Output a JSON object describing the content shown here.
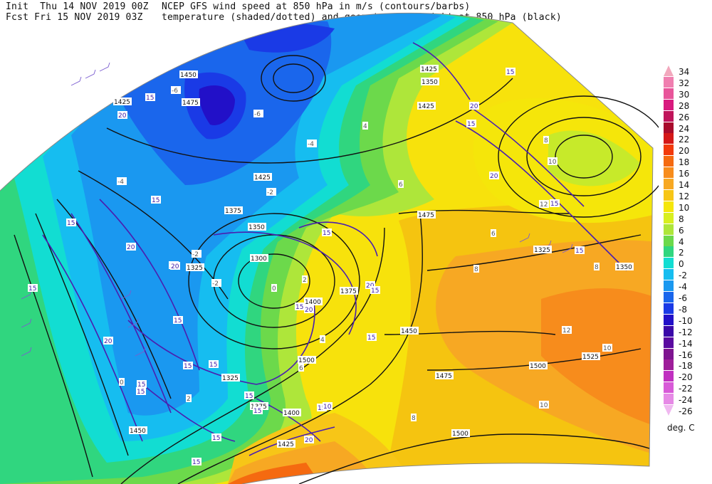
{
  "header": {
    "init_line": "Init  Thu 14 NOV 2019 00Z",
    "fcst_line": "Fcst Fri 15 NOV 2019 03Z",
    "title_line1": "NCEP GFS wind speed at 850 hPa in m/s (contours/barbs)",
    "title_line2": "temperature (shaded/dotted) and geopotential height at 850 hPa (black)"
  },
  "colorbar": {
    "units": "deg. C",
    "entries": [
      {
        "label": "34",
        "color": "#f2a8bd"
      },
      {
        "label": "32",
        "color": "#f07fb0"
      },
      {
        "label": "30",
        "color": "#e8559a"
      },
      {
        "label": "28",
        "color": "#d81b7f"
      },
      {
        "label": "26",
        "color": "#c0145a"
      },
      {
        "label": "24",
        "color": "#a80c2c"
      },
      {
        "label": "22",
        "color": "#d41818"
      },
      {
        "label": "20",
        "color": "#f23a0c"
      },
      {
        "label": "18",
        "color": "#f56a10"
      },
      {
        "label": "16",
        "color": "#f78c1c"
      },
      {
        "label": "14",
        "color": "#f7a823"
      },
      {
        "label": "12",
        "color": "#f7c617"
      },
      {
        "label": "10",
        "color": "#f5e60a"
      },
      {
        "label": "8",
        "color": "#d8ef1f"
      },
      {
        "label": "6",
        "color": "#aee63a"
      },
      {
        "label": "4",
        "color": "#6cd94b"
      },
      {
        "label": "2",
        "color": "#30d67f"
      },
      {
        "label": "0",
        "color": "#12ddd2"
      },
      {
        "label": "-2",
        "color": "#16bdf0"
      },
      {
        "label": "-4",
        "color": "#1a98f0"
      },
      {
        "label": "-6",
        "color": "#1a66ec"
      },
      {
        "label": "-8",
        "color": "#1a3ae6"
      },
      {
        "label": "-10",
        "color": "#2210c8"
      },
      {
        "label": "-12",
        "color": "#3a08a8"
      },
      {
        "label": "-14",
        "color": "#5a0aa0"
      },
      {
        "label": "-16",
        "color": "#7e1490"
      },
      {
        "label": "-18",
        "color": "#9e1e9a"
      },
      {
        "label": "-20",
        "color": "#c030c0"
      },
      {
        "label": "-22",
        "color": "#d85ad8"
      },
      {
        "label": "-24",
        "color": "#e68ae6"
      },
      {
        "label": "-26",
        "color": "#f0b8f0"
      }
    ]
  },
  "map": {
    "height_labels": [
      "1450",
      "1425",
      "1475",
      "1450",
      "1425",
      "1450",
      "1425",
      "1375",
      "1350",
      "1300",
      "1325",
      "1325",
      "1400",
      "1375",
      "1350",
      "1475",
      "1450",
      "1475",
      "1500",
      "1500",
      "1525",
      "1325",
      "1350",
      "1450",
      "1425",
      "1400",
      "1375",
      "1500",
      "1425"
    ],
    "wind_labels": [
      "20",
      "15",
      "15",
      "20",
      "15",
      "15",
      "20",
      "20",
      "15",
      "15",
      "15",
      "15",
      "20",
      "15",
      "15",
      "20",
      "15",
      "15",
      "15",
      "15",
      "20",
      "15",
      "15",
      "20",
      "15",
      "15",
      "20",
      "15",
      "15",
      "15",
      "10",
      "15",
      "20"
    ],
    "temp_labels": [
      "-6",
      "-6",
      "-4",
      "-2",
      "-4",
      "-2",
      "0",
      "-2",
      "2",
      "4",
      "6",
      "8",
      "10",
      "12",
      "8",
      "6",
      "8",
      "10",
      "12",
      "10",
      "8",
      "4",
      "6",
      "2",
      "0"
    ]
  }
}
